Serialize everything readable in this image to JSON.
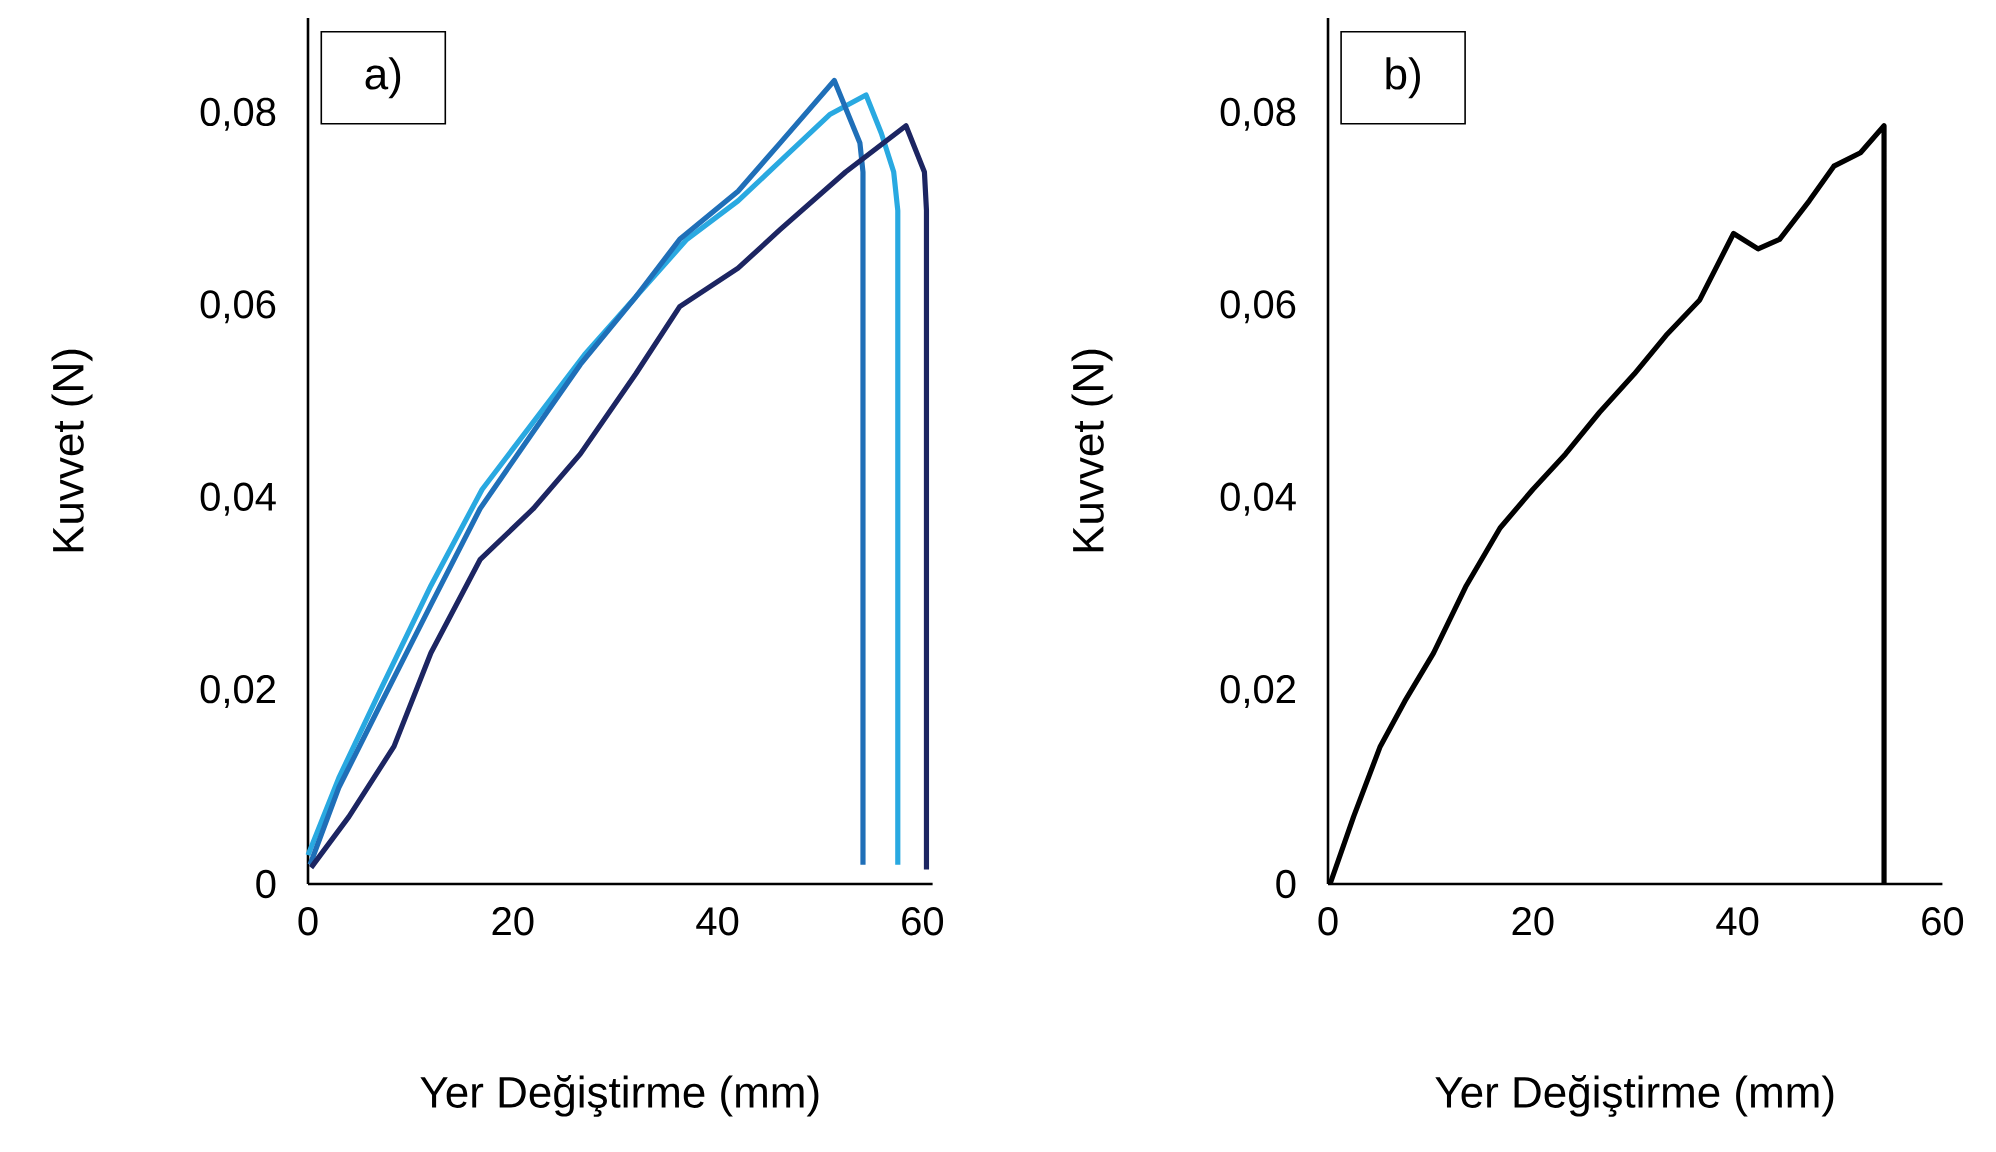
{
  "chart_data": [
    {
      "type": "line",
      "xlabel": "Yer Değiştirme (mm)",
      "ylabel": "Kuvvet (N)",
      "annotations": [
        "a)"
      ],
      "xlim": [
        0,
        61
      ],
      "ylim": [
        0,
        0.09
      ],
      "xticks": [
        0,
        20,
        40,
        60
      ],
      "yticks": [
        0,
        {
          "value": 0.02,
          "label": "0,02"
        },
        {
          "value": 0.04,
          "label": "0,04"
        },
        {
          "value": 0.06,
          "label": "0,06"
        },
        {
          "value": 0.08,
          "label": "0,08"
        }
      ],
      "grid": false,
      "line_style": "solid",
      "marker": "none",
      "series": [
        {
          "color": "#29a9e1",
          "x": [
            0,
            3,
            7,
            12,
            17,
            22,
            27,
            32,
            37,
            42,
            47,
            51,
            54.5,
            56,
            57.2,
            57.6,
            57.6
          ],
          "values": [
            0.003,
            0.011,
            0.02,
            0.031,
            0.041,
            0.048,
            0.055,
            0.061,
            0.067,
            0.071,
            0.076,
            0.08,
            0.082,
            0.078,
            0.074,
            0.07,
            0.002
          ]
        },
        {
          "color": "#1f6fb8",
          "x": [
            0.2,
            3,
            7,
            12,
            16.8,
            22,
            26.6,
            32,
            36.3,
            42,
            46.1,
            51.4,
            53.9,
            54.2,
            54.2
          ],
          "values": [
            0.002,
            0.01,
            0.0185,
            0.029,
            0.039,
            0.047,
            0.054,
            0.061,
            0.067,
            0.072,
            0.077,
            0.0835,
            0.077,
            0.074,
            0.002
          ]
        },
        {
          "color": "#1c2562",
          "x": [
            0.3,
            4,
            8.4,
            12,
            16.8,
            22,
            26.6,
            32,
            36.3,
            42,
            46.1,
            52.5,
            58.4,
            60.2,
            60.4,
            60.4
          ],
          "values": [
            0.0017,
            0.007,
            0.0143,
            0.024,
            0.0337,
            0.039,
            0.0447,
            0.053,
            0.06,
            0.064,
            0.068,
            0.074,
            0.0788,
            0.074,
            0.07,
            0.0015
          ]
        }
      ]
    },
    {
      "type": "line",
      "xlabel": "Yer Değiştirme (mm)",
      "ylabel": "Kuvvet (N)",
      "annotations": [
        "b)"
      ],
      "xlim": [
        0,
        60
      ],
      "ylim": [
        0,
        0.09
      ],
      "xticks": [
        0,
        20,
        40,
        60
      ],
      "yticks": [
        0,
        {
          "value": 0.02,
          "label": "0,02"
        },
        {
          "value": 0.04,
          "label": "0,04"
        },
        {
          "value": 0.06,
          "label": "0,06"
        },
        {
          "value": 0.08,
          "label": "0,08"
        }
      ],
      "grid": false,
      "line_style": "solid",
      "marker": "none",
      "series": [
        {
          "color": "#000000",
          "x": [
            0.2,
            2.5,
            5.1,
            7.5,
            10.3,
            13.5,
            16.8,
            20,
            23.2,
            26.5,
            29.9,
            33,
            36.3,
            39.6,
            42,
            44.1,
            47,
            49.4,
            52,
            54.3,
            54.3
          ],
          "values": [
            0,
            0.007,
            0.0143,
            0.019,
            0.024,
            0.031,
            0.037,
            0.041,
            0.0447,
            0.049,
            0.053,
            0.057,
            0.0607,
            0.0676,
            0.066,
            0.067,
            0.071,
            0.0746,
            0.076,
            0.0788,
            0
          ]
        }
      ]
    }
  ]
}
